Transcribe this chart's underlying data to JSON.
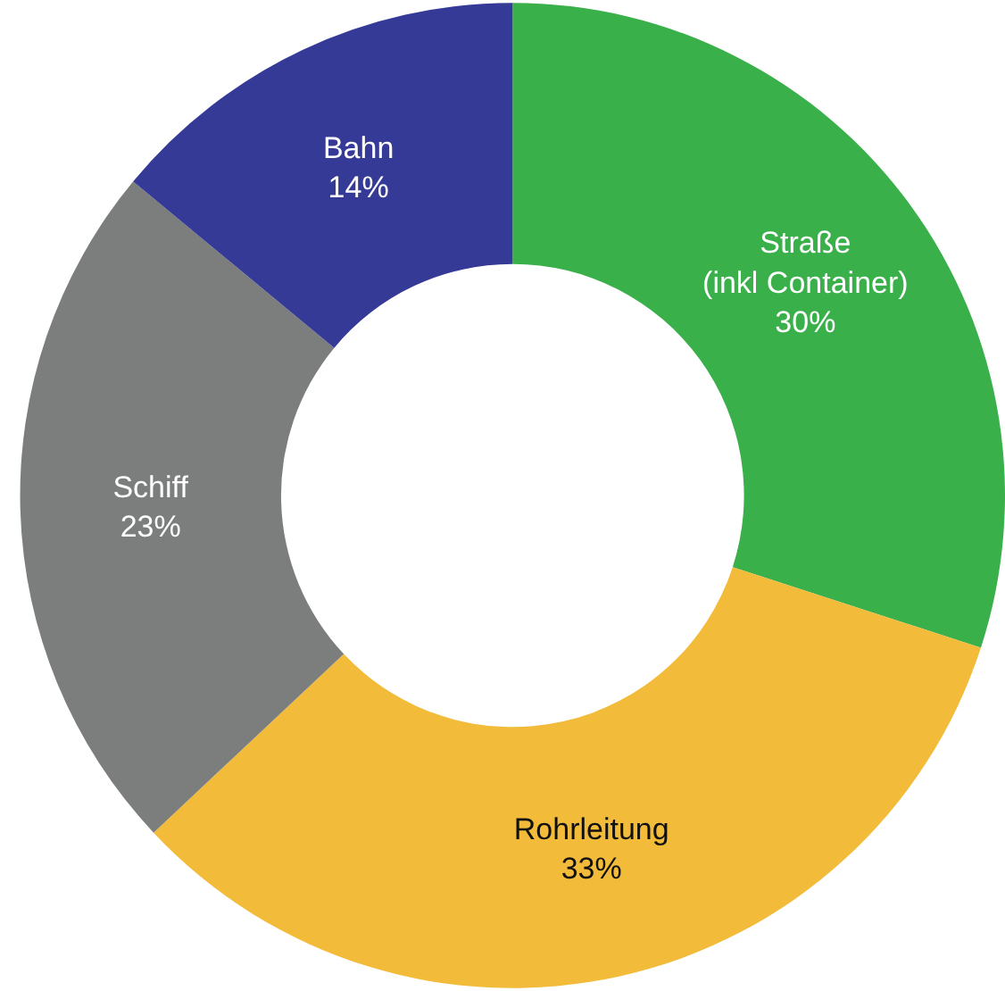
{
  "chart_data": {
    "type": "donut",
    "categories": [
      "Straße\n(inkl Container)",
      "Rohrleitung",
      "Schiff",
      "Bahn"
    ],
    "values": [
      30,
      33,
      23,
      14
    ],
    "value_labels": [
      "30%",
      "33%",
      "23%",
      "14%"
    ],
    "colors": [
      "#3ab04a",
      "#f2bb3a",
      "#7b7e7c",
      "#343a96"
    ],
    "legend": false
  }
}
